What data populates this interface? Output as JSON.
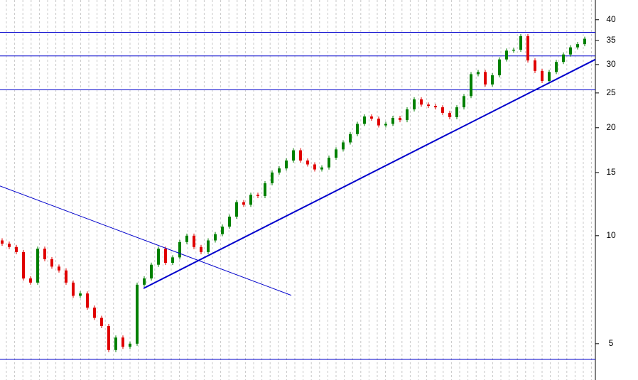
{
  "chart_data": {
    "type": "candlestick",
    "log_scale": true,
    "ylim": [
      3.96,
      45.4
    ],
    "yticks": [
      5,
      10,
      15,
      20,
      25,
      30,
      35,
      40
    ],
    "up_color": "#008000",
    "down_color": "#e00000",
    "line_color": "#0000cc",
    "open": [
      9.7,
      9.5,
      9.3,
      9.0,
      7.6,
      7.4,
      9.2,
      8.6,
      8.2,
      8.0,
      7.4,
      6.8,
      6.9,
      6.3,
      5.9,
      5.6,
      4.8,
      5.2,
      4.9,
      5.0,
      7.3,
      7.6,
      8.3,
      9.2,
      8.4,
      8.7,
      9.6,
      10.0,
      9.3,
      9.0,
      9.7,
      10.1,
      10.6,
      11.3,
      12.4,
      12.2,
      13.0,
      12.9,
      14.0,
      15.0,
      15.4,
      16.2,
      17.3,
      16.2,
      15.8,
      15.3,
      15.5,
      16.5,
      17.4,
      18.2,
      19.2,
      20.5,
      21.5,
      21.2,
      20.3,
      20.5,
      21.3,
      21.0,
      22.5,
      24.0,
      23.2,
      23.0,
      22.8,
      22.0,
      21.4,
      22.8,
      24.5,
      28.2,
      28.6,
      26.4,
      28.0,
      31.0,
      32.8,
      33.0,
      36.0,
      30.8,
      28.8,
      27.0,
      28.6,
      30.5,
      32.0,
      33.5,
      34.2
    ],
    "close": [
      9.5,
      9.3,
      9.0,
      7.6,
      7.4,
      9.2,
      8.6,
      8.2,
      8.0,
      7.4,
      6.8,
      6.9,
      6.3,
      5.9,
      5.6,
      4.8,
      5.2,
      4.9,
      5.0,
      7.3,
      7.6,
      8.3,
      9.2,
      8.4,
      8.7,
      9.6,
      10.0,
      9.3,
      9.0,
      9.7,
      10.1,
      10.6,
      11.3,
      12.4,
      12.2,
      13.0,
      12.9,
      14.0,
      15.0,
      15.4,
      16.2,
      17.3,
      16.2,
      15.8,
      15.3,
      15.5,
      16.5,
      17.4,
      18.2,
      19.2,
      20.5,
      21.5,
      21.2,
      20.3,
      20.5,
      21.3,
      21.0,
      22.5,
      24.0,
      23.2,
      23.0,
      22.8,
      22.0,
      21.4,
      22.8,
      24.5,
      28.2,
      28.6,
      26.4,
      28.0,
      31.0,
      32.8,
      33.0,
      36.0,
      30.8,
      28.8,
      27.0,
      28.6,
      30.5,
      32.0,
      33.5,
      34.2,
      35.4
    ],
    "levels": [
      36.9,
      31.7,
      25.5,
      4.52
    ],
    "trendlines": [
      {
        "x": [
          19.9,
          83.5
        ],
        "values": [
          7.13,
          31.0
        ],
        "width": 2
      },
      {
        "x": [
          -0.3,
          40.7
        ],
        "values": [
          13.76,
          6.82
        ],
        "width": 1
      }
    ]
  }
}
